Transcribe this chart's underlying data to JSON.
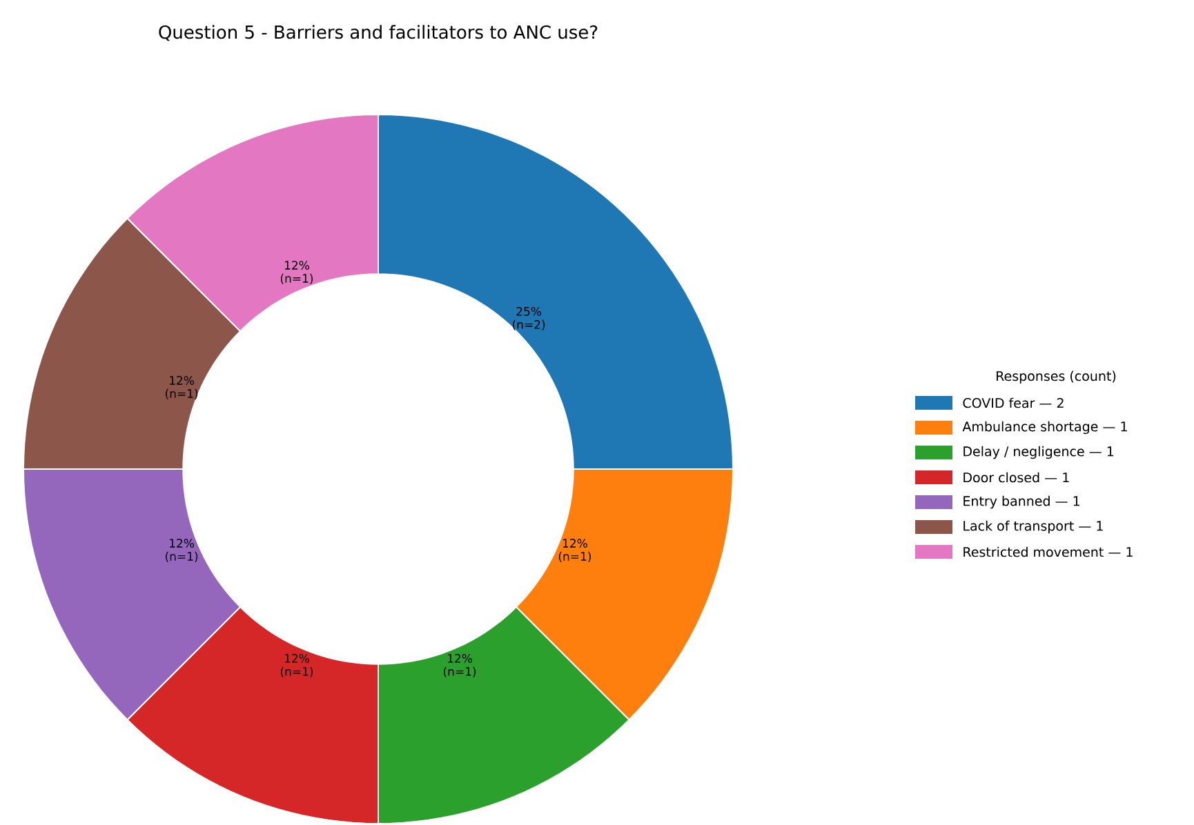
{
  "chart_data": {
    "type": "donut",
    "title": "Question 5 - Barriers and facilitators to ANC use?",
    "legend_title": "Responses (count)",
    "categories": [
      "COVID fear — 2",
      "Ambulance shortage — 1",
      "Delay / negligence — 1",
      "Door closed — 1",
      "Entry banned — 1",
      "Lack of transport — 1",
      "Restricted movement — 1"
    ],
    "values": [
      2,
      1,
      1,
      1,
      1,
      1,
      1
    ],
    "colors": [
      "#1f77b4",
      "#ff7f0e",
      "#2ca02c",
      "#d62728",
      "#9467bd",
      "#8c564b",
      "#e377c2"
    ],
    "value_labels": [
      "25% (n=2)",
      "12% (n=1)",
      "12% (n=1)",
      "12% (n=1)",
      "12% (n=1)",
      "12% (n=1)",
      "12% (n=1)"
    ],
    "legend": "right"
  }
}
